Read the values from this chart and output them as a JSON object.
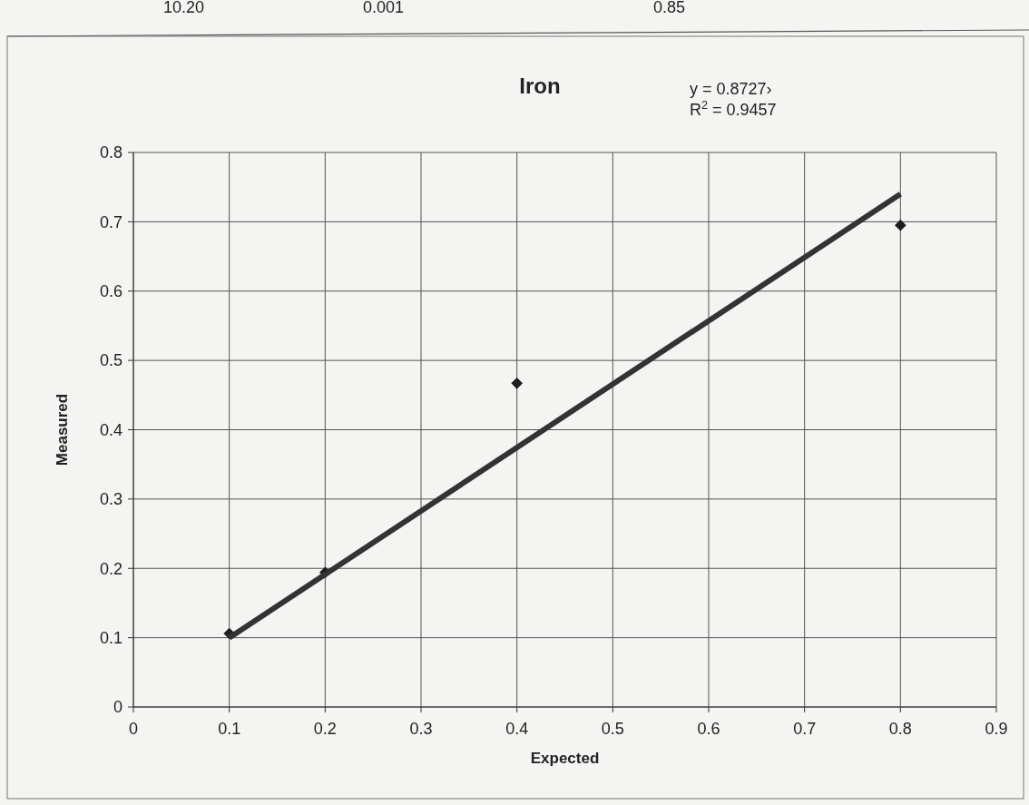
{
  "chart_data": {
    "type": "scatter",
    "title": "Iron",
    "xlabel": "Expected",
    "ylabel": "Measured",
    "annotations": [
      "10.20",
      "0.001",
      "0.85",
      "y = 0.8727›",
      "R$^{2}$ = 0.9457"
    ],
    "xlim": [
      0,
      0.9
    ],
    "xticks": [
      0,
      0.1,
      0.2,
      0.3,
      0.4,
      0.5,
      0.6,
      0.7,
      0.8,
      0.9
    ],
    "ylim": [
      0,
      0.8
    ],
    "yticks": [
      0,
      0.1,
      0.2,
      0.3,
      0.4,
      0.5,
      0.6,
      0.7,
      0.8
    ],
    "grid": true,
    "series": [
      {
        "marker": "diamond",
        "color": "#1e1e1e",
        "x": [
          0.1,
          0.2,
          0.4,
          0.8
        ],
        "values": [
          0.106,
          0.194,
          0.467,
          0.695
        ]
      },
      {
        "type": "line",
        "color": "#333333",
        "x": [
          0.1,
          0.8
        ],
        "values": [
          0.1,
          0.74
        ],
        "line_style": "solid"
      }
    ]
  }
}
